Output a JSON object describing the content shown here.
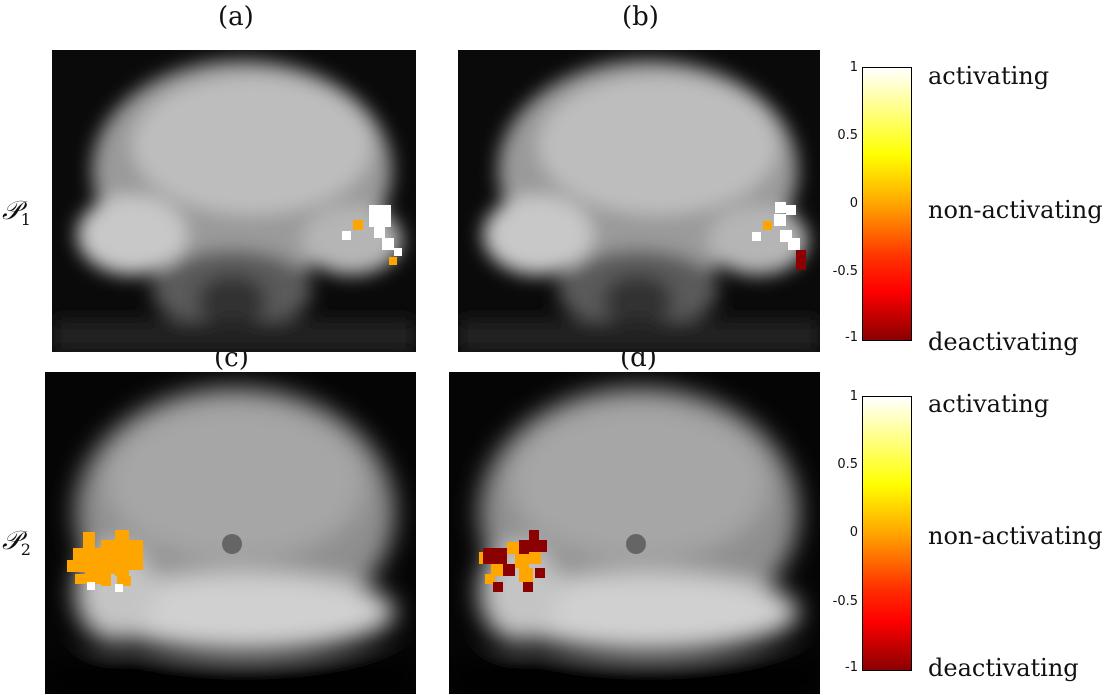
{
  "panels": {
    "a": "(a)",
    "b": "(b)",
    "c": "(c)",
    "d": "(d)"
  },
  "rows": {
    "p1": {
      "symbol": "𝒫",
      "sub": "1"
    },
    "p2": {
      "symbol": "𝒫",
      "sub": "2"
    }
  },
  "colorbar": {
    "ticks": [
      "1",
      "0.5",
      "0",
      "-0.5",
      "-1"
    ],
    "labels": {
      "top": "activating",
      "middle": "non-activating",
      "bottom": "deactivating"
    },
    "colors": [
      "#ffffff",
      "#ffff00",
      "#ffa500",
      "#ff0000",
      "#8b0000"
    ]
  }
}
